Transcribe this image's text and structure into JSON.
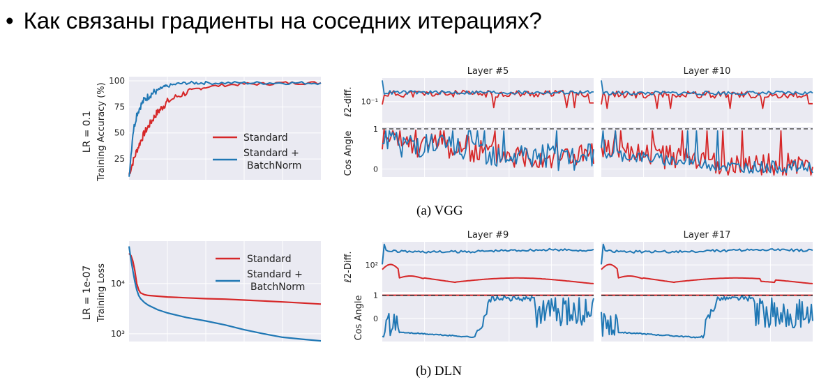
{
  "slide": {
    "bullet": "•",
    "title": "Как связаны градиенты на соседних итерациях?"
  },
  "captions": {
    "a": "(a) VGG",
    "b": "(b) DLN"
  },
  "colors": {
    "standard": "#d62728",
    "batchnorm": "#1f77b4",
    "panel_bg": "#eaeaf2",
    "grid": "#ffffff",
    "ref_line": "#555555"
  },
  "chart_data": [
    {
      "id": "vgg-accuracy",
      "type": "line",
      "left_label": "LR = 0.1",
      "ylabel": "Training Accuracy (%)",
      "yticks": [
        100,
        75,
        50,
        25
      ],
      "ylim": [
        5,
        104
      ],
      "xlim": [
        0,
        100
      ],
      "legend": {
        "placement": "lower-right",
        "entries": [
          "Standard",
          "Standard +",
          "BatchNorm"
        ]
      },
      "series": [
        {
          "name": "Standard",
          "color": "#d62728",
          "x": [
            0,
            2,
            4,
            6,
            8,
            10,
            12,
            14,
            16,
            18,
            20,
            25,
            30,
            35,
            40,
            50,
            60,
            70,
            80,
            90,
            100
          ],
          "y": [
            10,
            22,
            33,
            42,
            50,
            56,
            62,
            68,
            72,
            76,
            80,
            85,
            89,
            92,
            94,
            96,
            97,
            97,
            98,
            98,
            98
          ]
        },
        {
          "name": "Standard + BatchNorm",
          "color": "#1f77b4",
          "x": [
            0,
            2,
            4,
            6,
            8,
            10,
            12,
            14,
            16,
            18,
            20,
            25,
            30,
            35,
            40,
            50,
            60,
            70,
            80,
            90,
            100
          ],
          "y": [
            8,
            50,
            68,
            76,
            82,
            85,
            88,
            90,
            92,
            94,
            95,
            97,
            98,
            98,
            98,
            98,
            98,
            98,
            98,
            98,
            98
          ]
        }
      ]
    },
    {
      "id": "vgg-l2-layer5",
      "type": "line",
      "title": "Layer #5",
      "ylabel": "ℓ2-diff.",
      "yticks": [
        "10⁻¹"
      ],
      "scale": "log",
      "ylim": [
        0.02,
        0.6
      ],
      "series": [
        {
          "name": "Standard",
          "color": "#d62728",
          "base": 0.18,
          "noise": 0.45,
          "start": 0.08
        },
        {
          "name": "Standard + BatchNorm",
          "color": "#1f77b4",
          "base": 0.2,
          "noise": 0.25,
          "start": 0.5
        }
      ]
    },
    {
      "id": "vgg-l2-layer10",
      "type": "line",
      "title": "Layer #10",
      "scale": "log",
      "ylim": [
        0.02,
        0.6
      ],
      "series": [
        {
          "name": "Standard",
          "color": "#d62728",
          "base": 0.17,
          "noise": 0.45,
          "start": 0.08
        },
        {
          "name": "Standard + BatchNorm",
          "color": "#1f77b4",
          "base": 0.19,
          "noise": 0.25,
          "start": 0.5
        }
      ]
    },
    {
      "id": "vgg-cos-layer5",
      "type": "line",
      "ylabel": "Cos Angle",
      "yticks": [
        1,
        0
      ],
      "ylim": [
        -0.2,
        1.05
      ],
      "reference": 1,
      "series": [
        {
          "name": "Standard",
          "color": "#d62728",
          "pattern": "noisy",
          "level": [
            0.75,
            0.35
          ],
          "noise": 0.35
        },
        {
          "name": "Standard + BatchNorm",
          "color": "#1f77b4",
          "pattern": "noisy",
          "level": [
            0.7,
            0.3
          ],
          "noise": 0.35
        }
      ]
    },
    {
      "id": "vgg-cos-layer10",
      "type": "line",
      "ylim": [
        -0.2,
        1.05
      ],
      "reference": 1,
      "series": [
        {
          "name": "Standard",
          "color": "#d62728",
          "pattern": "noisy",
          "level": [
            0.5,
            0.1
          ],
          "noise": 0.3
        },
        {
          "name": "Standard + BatchNorm",
          "color": "#1f77b4",
          "pattern": "noisy",
          "level": [
            0.4,
            0.05
          ],
          "noise": 0.15
        }
      ]
    },
    {
      "id": "dln-loss",
      "type": "line",
      "left_label": "LR = 1e-07",
      "ylabel": "Training Loss",
      "yticks": [
        "10⁴",
        "10³"
      ],
      "scale": "log",
      "ylim": [
        700,
        70000
      ],
      "xlim": [
        0,
        100
      ],
      "legend": {
        "placement": "upper-right",
        "entries": [
          "Standard",
          "Standard +",
          "BatchNorm"
        ]
      },
      "series": [
        {
          "name": "Standard",
          "color": "#d62728",
          "x": [
            0,
            1,
            2,
            3,
            4,
            5,
            6,
            8,
            10,
            15,
            20,
            30,
            40,
            50,
            60,
            70,
            80,
            90,
            100
          ],
          "y": [
            40000,
            36000,
            28000,
            18000,
            10000,
            7500,
            6500,
            6000,
            5800,
            5600,
            5400,
            5200,
            5000,
            4900,
            4700,
            4500,
            4300,
            4100,
            3900
          ]
        },
        {
          "name": "Standard + BatchNorm",
          "color": "#1f77b4",
          "x": [
            0,
            1,
            2,
            3,
            4,
            5,
            6,
            8,
            10,
            15,
            20,
            30,
            40,
            50,
            60,
            70,
            80,
            90,
            100
          ],
          "y": [
            55000,
            30000,
            18000,
            11000,
            7500,
            5800,
            5000,
            4200,
            3700,
            3000,
            2600,
            2100,
            1800,
            1500,
            1200,
            1000,
            850,
            780,
            720
          ]
        }
      ]
    },
    {
      "id": "dln-l2-layer9",
      "type": "line",
      "title": "Layer #9",
      "ylabel": "ℓ2-Diff.",
      "yticks": [
        "10²"
      ],
      "scale": "log",
      "series": [
        {
          "name": "Standard",
          "color": "#d62728",
          "pattern": "smooth-low"
        },
        {
          "name": "Standard + BatchNorm",
          "color": "#1f77b4",
          "pattern": "smooth-high"
        }
      ]
    },
    {
      "id": "dln-l2-layer17",
      "type": "line",
      "title": "Layer #17",
      "scale": "log",
      "series": [
        {
          "name": "Standard",
          "color": "#d62728",
          "pattern": "smooth-low"
        },
        {
          "name": "Standard + BatchNorm",
          "color": "#1f77b4",
          "pattern": "smooth-high"
        }
      ]
    },
    {
      "id": "dln-cos-layer9",
      "type": "line",
      "ylabel": "Cos Angle",
      "yticks": [
        1,
        0
      ],
      "ylim": [
        -1,
        1.05
      ],
      "reference": 1,
      "series": [
        {
          "name": "Standard",
          "color": "#d62728",
          "pattern": "flat-one"
        },
        {
          "name": "Standard + BatchNorm",
          "color": "#1f77b4",
          "pattern": "dln-bn-9"
        }
      ]
    },
    {
      "id": "dln-cos-layer17",
      "type": "line",
      "ylim": [
        -1,
        1.05
      ],
      "reference": 1,
      "series": [
        {
          "name": "Standard",
          "color": "#d62728",
          "pattern": "flat-one"
        },
        {
          "name": "Standard + BatchNorm",
          "color": "#1f77b4",
          "pattern": "dln-bn-17"
        }
      ]
    }
  ]
}
